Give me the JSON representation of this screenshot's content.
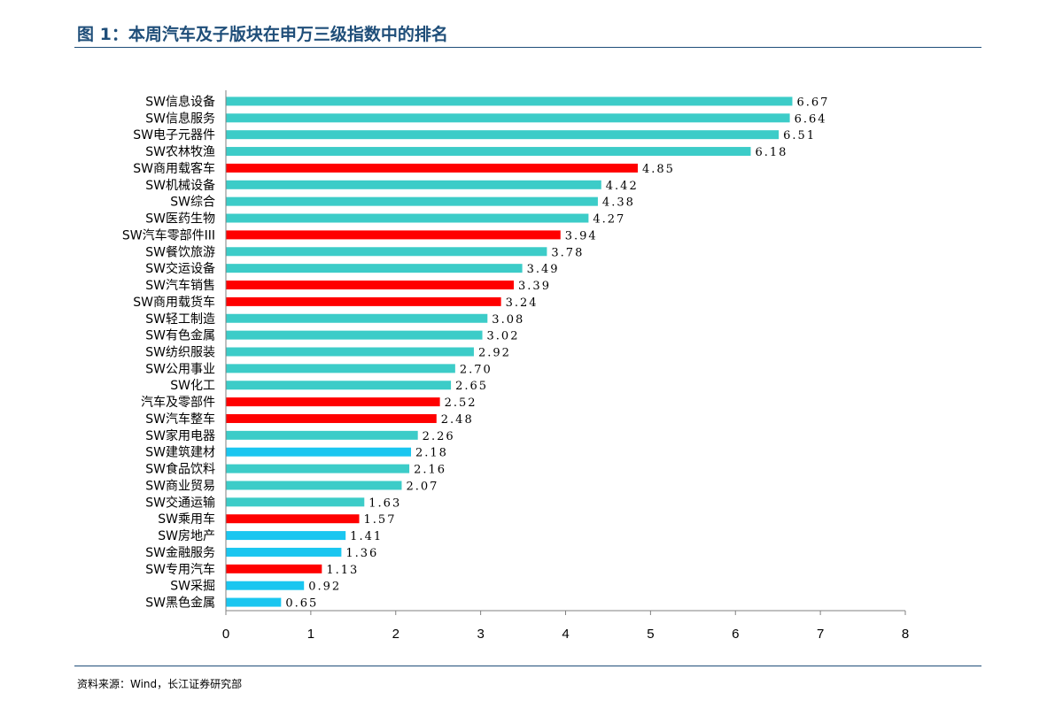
{
  "figure": {
    "title": "图 1：本周汽车及子版块在申万三级指数中的排名",
    "source": "资料来源：Wind，长江证券研究部"
  },
  "colors": {
    "header": "#1f4e79",
    "teal": "#3cccc8",
    "red": "#ff0000",
    "blue": "#1ac6f0"
  },
  "chart_data": {
    "type": "bar",
    "orientation": "horizontal",
    "title": "",
    "xlabel": "",
    "ylabel": "",
    "xlim": [
      0,
      8
    ],
    "xticks": [
      0,
      1,
      2,
      3,
      4,
      5,
      6,
      7,
      8
    ],
    "grid": false,
    "legend": "none",
    "bars": [
      {
        "label": "SW信息设备",
        "value": 6.67,
        "value_text": "6.67",
        "color": "teal"
      },
      {
        "label": "SW信息服务",
        "value": 6.64,
        "value_text": "6.64",
        "color": "teal"
      },
      {
        "label": "SW电子元器件",
        "value": 6.51,
        "value_text": "6.51",
        "color": "teal"
      },
      {
        "label": "SW农林牧渔",
        "value": 6.18,
        "value_text": "6.18",
        "color": "teal"
      },
      {
        "label": "SW商用载客车",
        "value": 4.85,
        "value_text": "4.85",
        "color": "red"
      },
      {
        "label": "SW机械设备",
        "value": 4.42,
        "value_text": "4.42",
        "color": "teal"
      },
      {
        "label": "SW综合",
        "value": 4.38,
        "value_text": "4.38",
        "color": "teal"
      },
      {
        "label": "SW医药生物",
        "value": 4.27,
        "value_text": "4.27",
        "color": "teal"
      },
      {
        "label": "SW汽车零部件III",
        "value": 3.94,
        "value_text": "3.94",
        "color": "red"
      },
      {
        "label": "SW餐饮旅游",
        "value": 3.78,
        "value_text": "3.78",
        "color": "teal"
      },
      {
        "label": "SW交运设备",
        "value": 3.49,
        "value_text": "3.49",
        "color": "teal"
      },
      {
        "label": "SW汽车销售",
        "value": 3.39,
        "value_text": "3.39",
        "color": "red"
      },
      {
        "label": "SW商用载货车",
        "value": 3.24,
        "value_text": "3.24",
        "color": "red"
      },
      {
        "label": "SW轻工制造",
        "value": 3.08,
        "value_text": "3.08",
        "color": "teal"
      },
      {
        "label": "SW有色金属",
        "value": 3.02,
        "value_text": "3.02",
        "color": "teal"
      },
      {
        "label": "SW纺织服装",
        "value": 2.92,
        "value_text": "2.92",
        "color": "teal"
      },
      {
        "label": "SW公用事业",
        "value": 2.7,
        "value_text": "2.70",
        "color": "teal"
      },
      {
        "label": "SW化工",
        "value": 2.65,
        "value_text": "2.65",
        "color": "teal"
      },
      {
        "label": "汽车及零部件",
        "value": 2.52,
        "value_text": "2.52",
        "color": "red"
      },
      {
        "label": "SW汽车整车",
        "value": 2.48,
        "value_text": "2.48",
        "color": "red"
      },
      {
        "label": "SW家用电器",
        "value": 2.26,
        "value_text": "2.26",
        "color": "teal"
      },
      {
        "label": "SW建筑建材",
        "value": 2.18,
        "value_text": "2.18",
        "color": "blue"
      },
      {
        "label": "SW食品饮料",
        "value": 2.16,
        "value_text": "2.16",
        "color": "teal"
      },
      {
        "label": "SW商业贸易",
        "value": 2.07,
        "value_text": "2.07",
        "color": "teal"
      },
      {
        "label": "SW交通运输",
        "value": 1.63,
        "value_text": "1.63",
        "color": "teal"
      },
      {
        "label": "SW乘用车",
        "value": 1.57,
        "value_text": "1.57",
        "color": "red"
      },
      {
        "label": "SW房地产",
        "value": 1.41,
        "value_text": "1.41",
        "color": "blue"
      },
      {
        "label": "SW金融服务",
        "value": 1.36,
        "value_text": "1.36",
        "color": "blue"
      },
      {
        "label": "SW专用汽车",
        "value": 1.13,
        "value_text": "1.13",
        "color": "red"
      },
      {
        "label": "SW采掘",
        "value": 0.92,
        "value_text": "0.92",
        "color": "blue"
      },
      {
        "label": "SW黑色金属",
        "value": 0.65,
        "value_text": "0.65",
        "color": "blue"
      }
    ]
  }
}
